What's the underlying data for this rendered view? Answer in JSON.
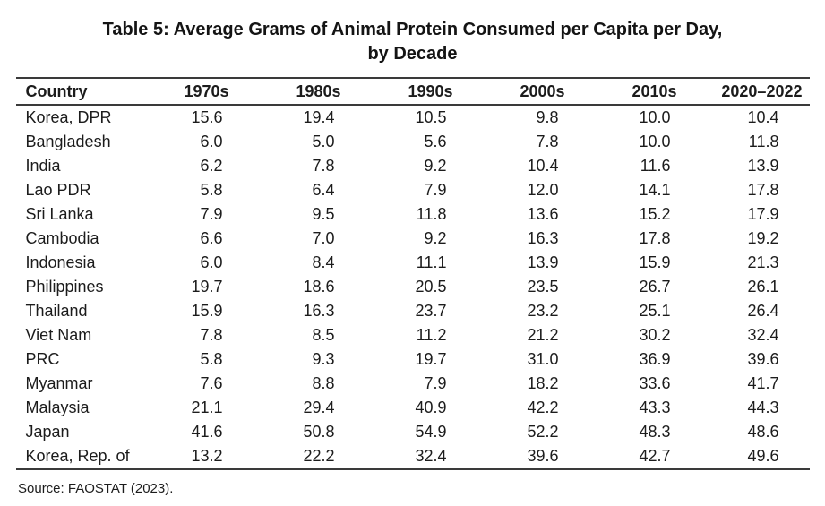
{
  "title": {
    "line1": "Table 5: Average Grams of Animal Protein Consumed per Capita per Day,",
    "line2": "by Decade"
  },
  "table": {
    "columns": [
      "Country",
      "1970s",
      "1980s",
      "1990s",
      "2000s",
      "2010s",
      "2020–2022"
    ],
    "rows": [
      [
        "Korea, DPR",
        "15.6",
        "19.4",
        "10.5",
        "9.8",
        "10.0",
        "10.4"
      ],
      [
        "Bangladesh",
        "6.0",
        "5.0",
        "5.6",
        "7.8",
        "10.0",
        "11.8"
      ],
      [
        "India",
        "6.2",
        "7.8",
        "9.2",
        "10.4",
        "11.6",
        "13.9"
      ],
      [
        "Lao PDR",
        "5.8",
        "6.4",
        "7.9",
        "12.0",
        "14.1",
        "17.8"
      ],
      [
        "Sri Lanka",
        "7.9",
        "9.5",
        "11.8",
        "13.6",
        "15.2",
        "17.9"
      ],
      [
        "Cambodia",
        "6.6",
        "7.0",
        "9.2",
        "16.3",
        "17.8",
        "19.2"
      ],
      [
        "Indonesia",
        "6.0",
        "8.4",
        "11.1",
        "13.9",
        "15.9",
        "21.3"
      ],
      [
        "Philippines",
        "19.7",
        "18.6",
        "20.5",
        "23.5",
        "26.7",
        "26.1"
      ],
      [
        "Thailand",
        "15.9",
        "16.3",
        "23.7",
        "23.2",
        "25.1",
        "26.4"
      ],
      [
        "Viet Nam",
        "7.8",
        "8.5",
        "11.2",
        "21.2",
        "30.2",
        "32.4"
      ],
      [
        "PRC",
        "5.8",
        "9.3",
        "19.7",
        "31.0",
        "36.9",
        "39.6"
      ],
      [
        "Myanmar",
        "7.6",
        "8.8",
        "7.9",
        "18.2",
        "33.6",
        "41.7"
      ],
      [
        "Malaysia",
        "21.1",
        "29.4",
        "40.9",
        "42.2",
        "43.3",
        "44.3"
      ],
      [
        "Japan",
        "41.6",
        "50.8",
        "54.9",
        "52.2",
        "48.3",
        "48.6"
      ],
      [
        "Korea, Rep. of",
        "13.2",
        "22.2",
        "32.4",
        "39.6",
        "42.7",
        "49.6"
      ]
    ]
  },
  "source": "Source: FAOSTAT (2023).",
  "colors": {
    "text": "#1c1c1c",
    "rule": "#3a3a3a",
    "background": "#ffffff"
  }
}
